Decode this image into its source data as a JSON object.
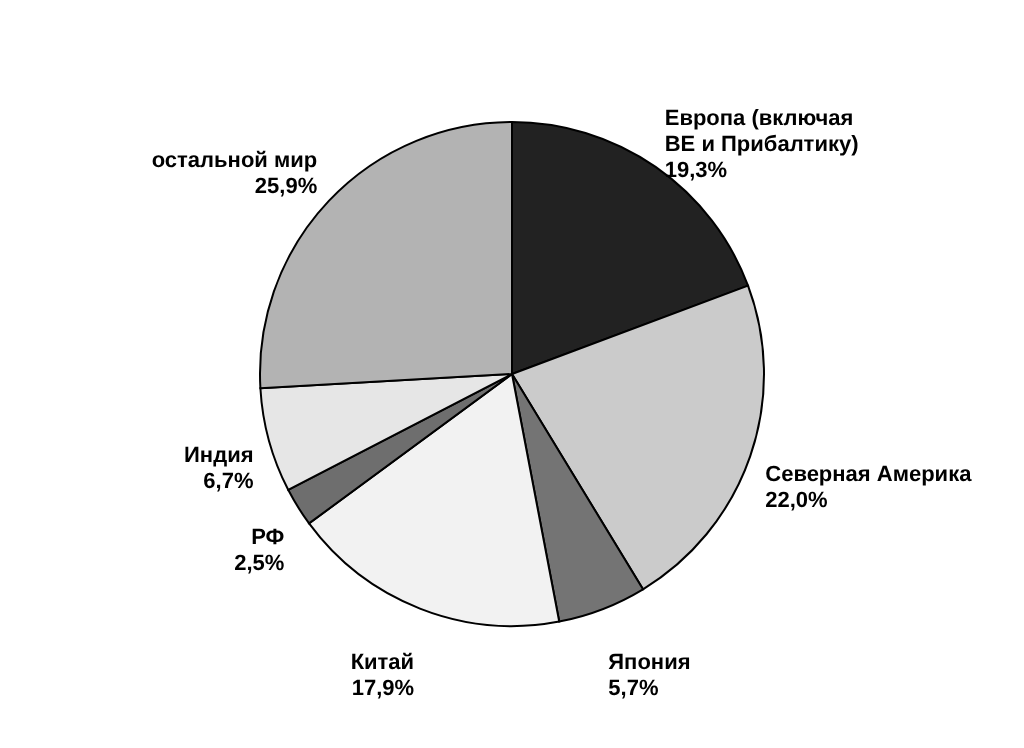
{
  "chart_data": {
    "type": "pie",
    "categories": [
      "Европа (включая\nВЕ и Прибалтику)",
      "Северная Америка",
      "Япония",
      "Китай",
      "РФ",
      "Индия",
      "остальной мир"
    ],
    "values": [
      19.3,
      22.0,
      5.7,
      17.9,
      2.5,
      6.7,
      25.9
    ],
    "value_labels": [
      "19,3%",
      "22,0%",
      "5,7%",
      "17,9%",
      "2,5%",
      "6,7%",
      "25,9%"
    ],
    "colors": [
      "#222222",
      "#cbcbcb",
      "#747474",
      "#f2f2f2",
      "#6e6e6e",
      "#e6e6e6",
      "#b3b3b3"
    ]
  }
}
